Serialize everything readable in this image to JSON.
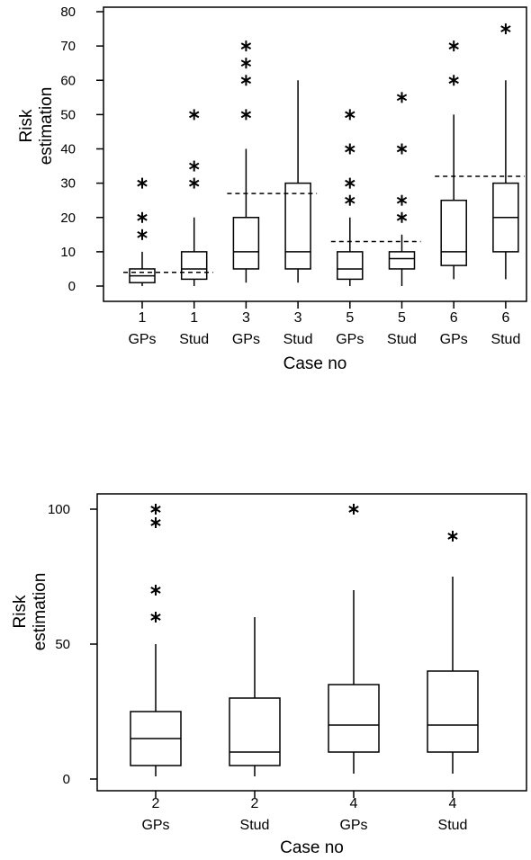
{
  "chart_data": [
    {
      "type": "box",
      "xlabel": "Case no",
      "ylabel": "Risk estimation",
      "ylim": [
        0,
        80
      ],
      "yticks": [
        "0",
        "10",
        "20",
        "30",
        "40",
        "50",
        "60",
        "70",
        "80"
      ],
      "grid": false,
      "categories": [
        {
          "case": "1",
          "group": "GPs"
        },
        {
          "case": "1",
          "group": "Stud"
        },
        {
          "case": "3",
          "group": "GPs"
        },
        {
          "case": "3",
          "group": "Stud"
        },
        {
          "case": "5",
          "group": "GPs"
        },
        {
          "case": "5",
          "group": "Stud"
        },
        {
          "case": "6",
          "group": "GPs"
        },
        {
          "case": "6",
          "group": "Stud"
        }
      ],
      "boxes": [
        {
          "min": 0,
          "q1": 1,
          "median": 3,
          "q3": 5,
          "max": 10,
          "outliers": [
            15,
            20,
            30
          ]
        },
        {
          "min": 0,
          "q1": 2,
          "median": 5,
          "q3": 10,
          "max": 20,
          "outliers": [
            30,
            35,
            50
          ]
        },
        {
          "min": 1,
          "q1": 5,
          "median": 10,
          "q3": 20,
          "max": 40,
          "outliers": [
            50,
            60,
            65,
            70
          ]
        },
        {
          "min": 1,
          "q1": 5,
          "median": 10,
          "q3": 30,
          "max": 60,
          "outliers": []
        },
        {
          "min": 0,
          "q1": 2,
          "median": 5,
          "q3": 10,
          "max": 20,
          "outliers": [
            25,
            30,
            40,
            50
          ]
        },
        {
          "min": 0,
          "q1": 5,
          "median": 8,
          "q3": 10,
          "max": 15,
          "outliers": [
            20,
            25,
            40,
            55
          ]
        },
        {
          "min": 2,
          "q1": 6,
          "median": 10,
          "q3": 25,
          "max": 50,
          "outliers": [
            60,
            70
          ]
        },
        {
          "min": 2,
          "q1": 10,
          "median": 20,
          "q3": 30,
          "max": 60,
          "outliers": [
            75
          ]
        }
      ],
      "reference_lines": [
        {
          "from": 0,
          "to": 1,
          "value": 4
        },
        {
          "from": 2,
          "to": 3,
          "value": 27
        },
        {
          "from": 4,
          "to": 5,
          "value": 13
        },
        {
          "from": 6,
          "to": 7,
          "value": 32
        }
      ]
    },
    {
      "type": "box",
      "xlabel": "Case no",
      "ylabel": "Risk estimation",
      "ylim": [
        0,
        100
      ],
      "yticks": [
        "0",
        "50",
        "100"
      ],
      "grid": false,
      "categories": [
        {
          "case": "2",
          "group": "GPs"
        },
        {
          "case": "2",
          "group": "Stud"
        },
        {
          "case": "4",
          "group": "GPs"
        },
        {
          "case": "4",
          "group": "Stud"
        }
      ],
      "boxes": [
        {
          "min": 1,
          "q1": 5,
          "median": 15,
          "q3": 25,
          "max": 50,
          "outliers": [
            60,
            70,
            95,
            100
          ]
        },
        {
          "min": 1,
          "q1": 5,
          "median": 10,
          "q3": 30,
          "max": 60,
          "outliers": []
        },
        {
          "min": 2,
          "q1": 10,
          "median": 20,
          "q3": 35,
          "max": 70,
          "outliers": [
            100
          ]
        },
        {
          "min": 2,
          "q1": 10,
          "median": 20,
          "q3": 40,
          "max": 75,
          "outliers": [
            90
          ]
        }
      ],
      "reference_lines": []
    }
  ]
}
